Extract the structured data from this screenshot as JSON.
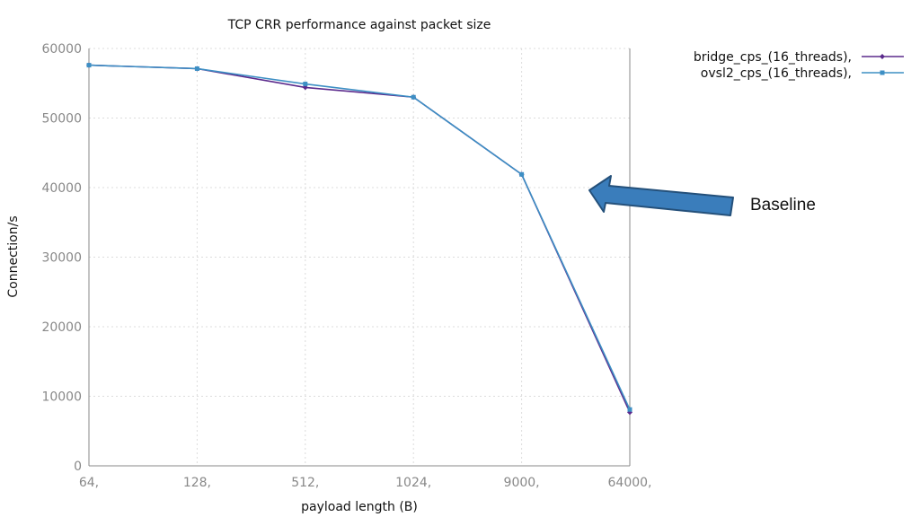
{
  "chart_data": {
    "type": "line",
    "title": "TCP CRR performance against packet size",
    "xlabel": "payload length (B)",
    "ylabel": "Connection/s",
    "categories": [
      "64,",
      "128,",
      "512,",
      "1024,",
      "9000,",
      "64000,"
    ],
    "ylim": [
      0,
      60000
    ],
    "yticks": [
      0,
      10000,
      20000,
      30000,
      40000,
      50000,
      60000
    ],
    "grid": true,
    "legend_position": "top-right, outside plot",
    "series": [
      {
        "name": "bridge_cps_(16_threads),",
        "color": "#5b2a8c",
        "marker": "diamond",
        "values": [
          57600,
          57100,
          54400,
          53000,
          41900,
          7700
        ]
      },
      {
        "name": "ovsl2_cps_(16_threads),",
        "color": "#3d8fc4",
        "marker": "square",
        "values": [
          57600,
          57100,
          54900,
          53000,
          41900,
          8100
        ]
      }
    ],
    "annotations": [
      {
        "text": "Baseline",
        "type": "arrow",
        "color": "#3a7dbb",
        "points_to": "9000, 40000"
      }
    ]
  }
}
